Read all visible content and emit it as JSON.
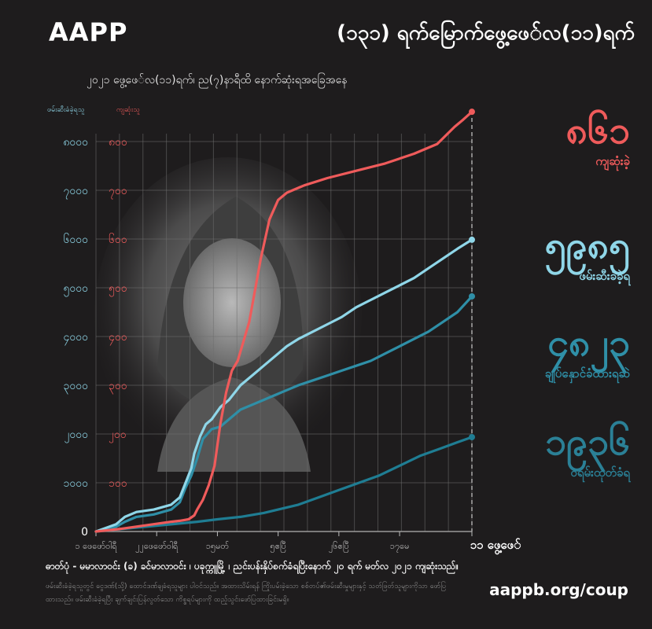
{
  "brand": "AAPP",
  "headline": "(၁၃၁) ရက်မြောက်ဖွေ့ဖေ်လ(၁၁)ရက်",
  "subtitle": "၂၀၂၁ ဖွေ့ဖေ်လ(၁၁)ရက်၊ ည(၇)နာရီထိ  နောက်ဆုံးရအခြေအနေ",
  "colors": {
    "killed": "#ef5b5b",
    "arrested": "#8fd6e8",
    "detained": "#2f8fa7",
    "warrant": "#1f7d93",
    "background": "#1e1c1d"
  },
  "stats": [
    {
      "number": "၈၆၁",
      "label": "ကျဆုံးခဲ့",
      "color": "#ef5b5b"
    },
    {
      "number": "၅၉၈၅",
      "label": "ဖမ်းဆီးခံခဲ့ရ",
      "color": "#8fd6e8"
    },
    {
      "number": "၄၈၂၃",
      "label": "ချုပ်နှောင်ခံထားရဆဲ",
      "color": "#2f8fa7"
    },
    {
      "number": "၁၉၃၆",
      "label": "ဝရမ်းထုတ်ခံရ",
      "color": "#2b8096"
    }
  ],
  "credit": "ဓာတ်ပုံ - မမာလာဝင်း (ခ) ခင်မာလာဝင်း ၊ ပခုက္ကူမြို့ ၊ ညင်းပန်းနှိပ်စက်ခံရပြီးနောက် ၂၀ ရက် မတ်လ ၂၀၂၁ ကျဆုံးသည်။",
  "note": "ဖမ်းဆီးခံခဲ့ရသူတွင် ငွေဒဏ်(သို့) ထောင်ဒဏ်ချခံရသူများ ပါဝင်သည်။ အထားသိမ်းရန် ကြိုးပမ်းခဲ့သော စစ်တပ်၏ဖမ်းဆီးမှုများနှင့် သတ်ဖြတ်သူများကိုသာ ဖော်ပြထားသည်။ ဖမ်းဆီးခံခဲ့ရပြီး ချက်ချင်းပြန်လွတ်သော ကိစ္စရပ်များကို ထည့်သွင်းဖော်ပြထားခြင်းမရှိ။",
  "url": "aappb.org/coup",
  "chart_data": {
    "type": "line",
    "left_axis_label": "ဖမ်းဆီးခံခဲ့ရသူ",
    "right_axis_label": "ကျဆုံးသူ",
    "left_ticks": [
      "0",
      "၁၀၀၀",
      "၂၀၀၀",
      "၃၀၀၀",
      "၄၀၀၀",
      "၅၀၀၀",
      "၆၀၀၀",
      "၇၀၀၀",
      "၈၀၀၀"
    ],
    "right_ticks": [
      "၁၀၀",
      "၂၀၀",
      "၃၀၀",
      "၄၀၀",
      "၅၀၀",
      "၆၀၀",
      "၇၀၀",
      "၈၀၀"
    ],
    "left_ylim": [
      0,
      8000
    ],
    "right_ylim": [
      0,
      800
    ],
    "x_labels": [
      "၁ ဖေဖော်ဝါရီ",
      "၂၂ဖေဖော်ဝါရီ",
      "၁၅မတ်",
      "၅ဧပြီ",
      "၂၆ဧပြီ",
      "၁၇မေ",
      "၁၁ ဖွေ့ဖေ်"
    ],
    "x_label_days": [
      0,
      21,
      42,
      63,
      84,
      105,
      130
    ],
    "xlim": [
      0,
      130
    ],
    "series": [
      {
        "key": "killed",
        "axis": "right",
        "final": "၈၆၁",
        "x": [
          0,
          8,
          14,
          20,
          26,
          29,
          32,
          34,
          35,
          37,
          39,
          41,
          43,
          45,
          47,
          49,
          53,
          57,
          60,
          63,
          66,
          72,
          80,
          90,
          100,
          110,
          118,
          124,
          127,
          130
        ],
        "y": [
          0,
          5,
          10,
          15,
          20,
          22,
          25,
          33,
          45,
          65,
          95,
          135,
          220,
          285,
          330,
          350,
          430,
          560,
          640,
          680,
          695,
          710,
          725,
          740,
          755,
          775,
          795,
          830,
          845,
          861
        ]
      },
      {
        "key": "arrested",
        "axis": "left",
        "final": "၅၉၈၅",
        "x": [
          0,
          7,
          10,
          14,
          20,
          26,
          29,
          31,
          33,
          34,
          36,
          38,
          40,
          43,
          46,
          50,
          54,
          58,
          62,
          66,
          70,
          75,
          80,
          85,
          90,
          95,
          100,
          105,
          110,
          115,
          120,
          125,
          130
        ],
        "y": [
          0,
          150,
          300,
          400,
          450,
          550,
          700,
          1000,
          1300,
          1600,
          1950,
          2200,
          2300,
          2550,
          2700,
          3000,
          3200,
          3400,
          3600,
          3800,
          3950,
          4100,
          4250,
          4400,
          4600,
          4750,
          4900,
          5050,
          5200,
          5400,
          5600,
          5800,
          5985
        ]
      },
      {
        "key": "detained",
        "axis": "left",
        "final": "၄၈၂၃",
        "x": [
          0,
          7,
          10,
          14,
          20,
          26,
          29,
          31,
          33,
          35,
          37,
          40,
          43,
          46,
          50,
          54,
          58,
          62,
          66,
          70,
          75,
          80,
          85,
          90,
          95,
          100,
          105,
          110,
          115,
          120,
          125,
          130
        ],
        "y": [
          0,
          100,
          200,
          300,
          350,
          450,
          600,
          900,
          1150,
          1500,
          1900,
          2100,
          2150,
          2300,
          2500,
          2600,
          2700,
          2800,
          2900,
          3000,
          3100,
          3200,
          3300,
          3400,
          3500,
          3650,
          3800,
          3950,
          4100,
          4300,
          4500,
          4823
        ]
      },
      {
        "key": "warrant",
        "axis": "left",
        "final": "၁၉၃၆",
        "x": [
          0,
          14,
          28,
          35,
          42,
          50,
          58,
          63,
          70,
          77,
          84,
          91,
          98,
          105,
          112,
          119,
          125,
          130
        ],
        "y": [
          0,
          80,
          160,
          200,
          250,
          300,
          380,
          450,
          550,
          700,
          850,
          1000,
          1150,
          1350,
          1550,
          1700,
          1830,
          1936
        ]
      }
    ]
  }
}
